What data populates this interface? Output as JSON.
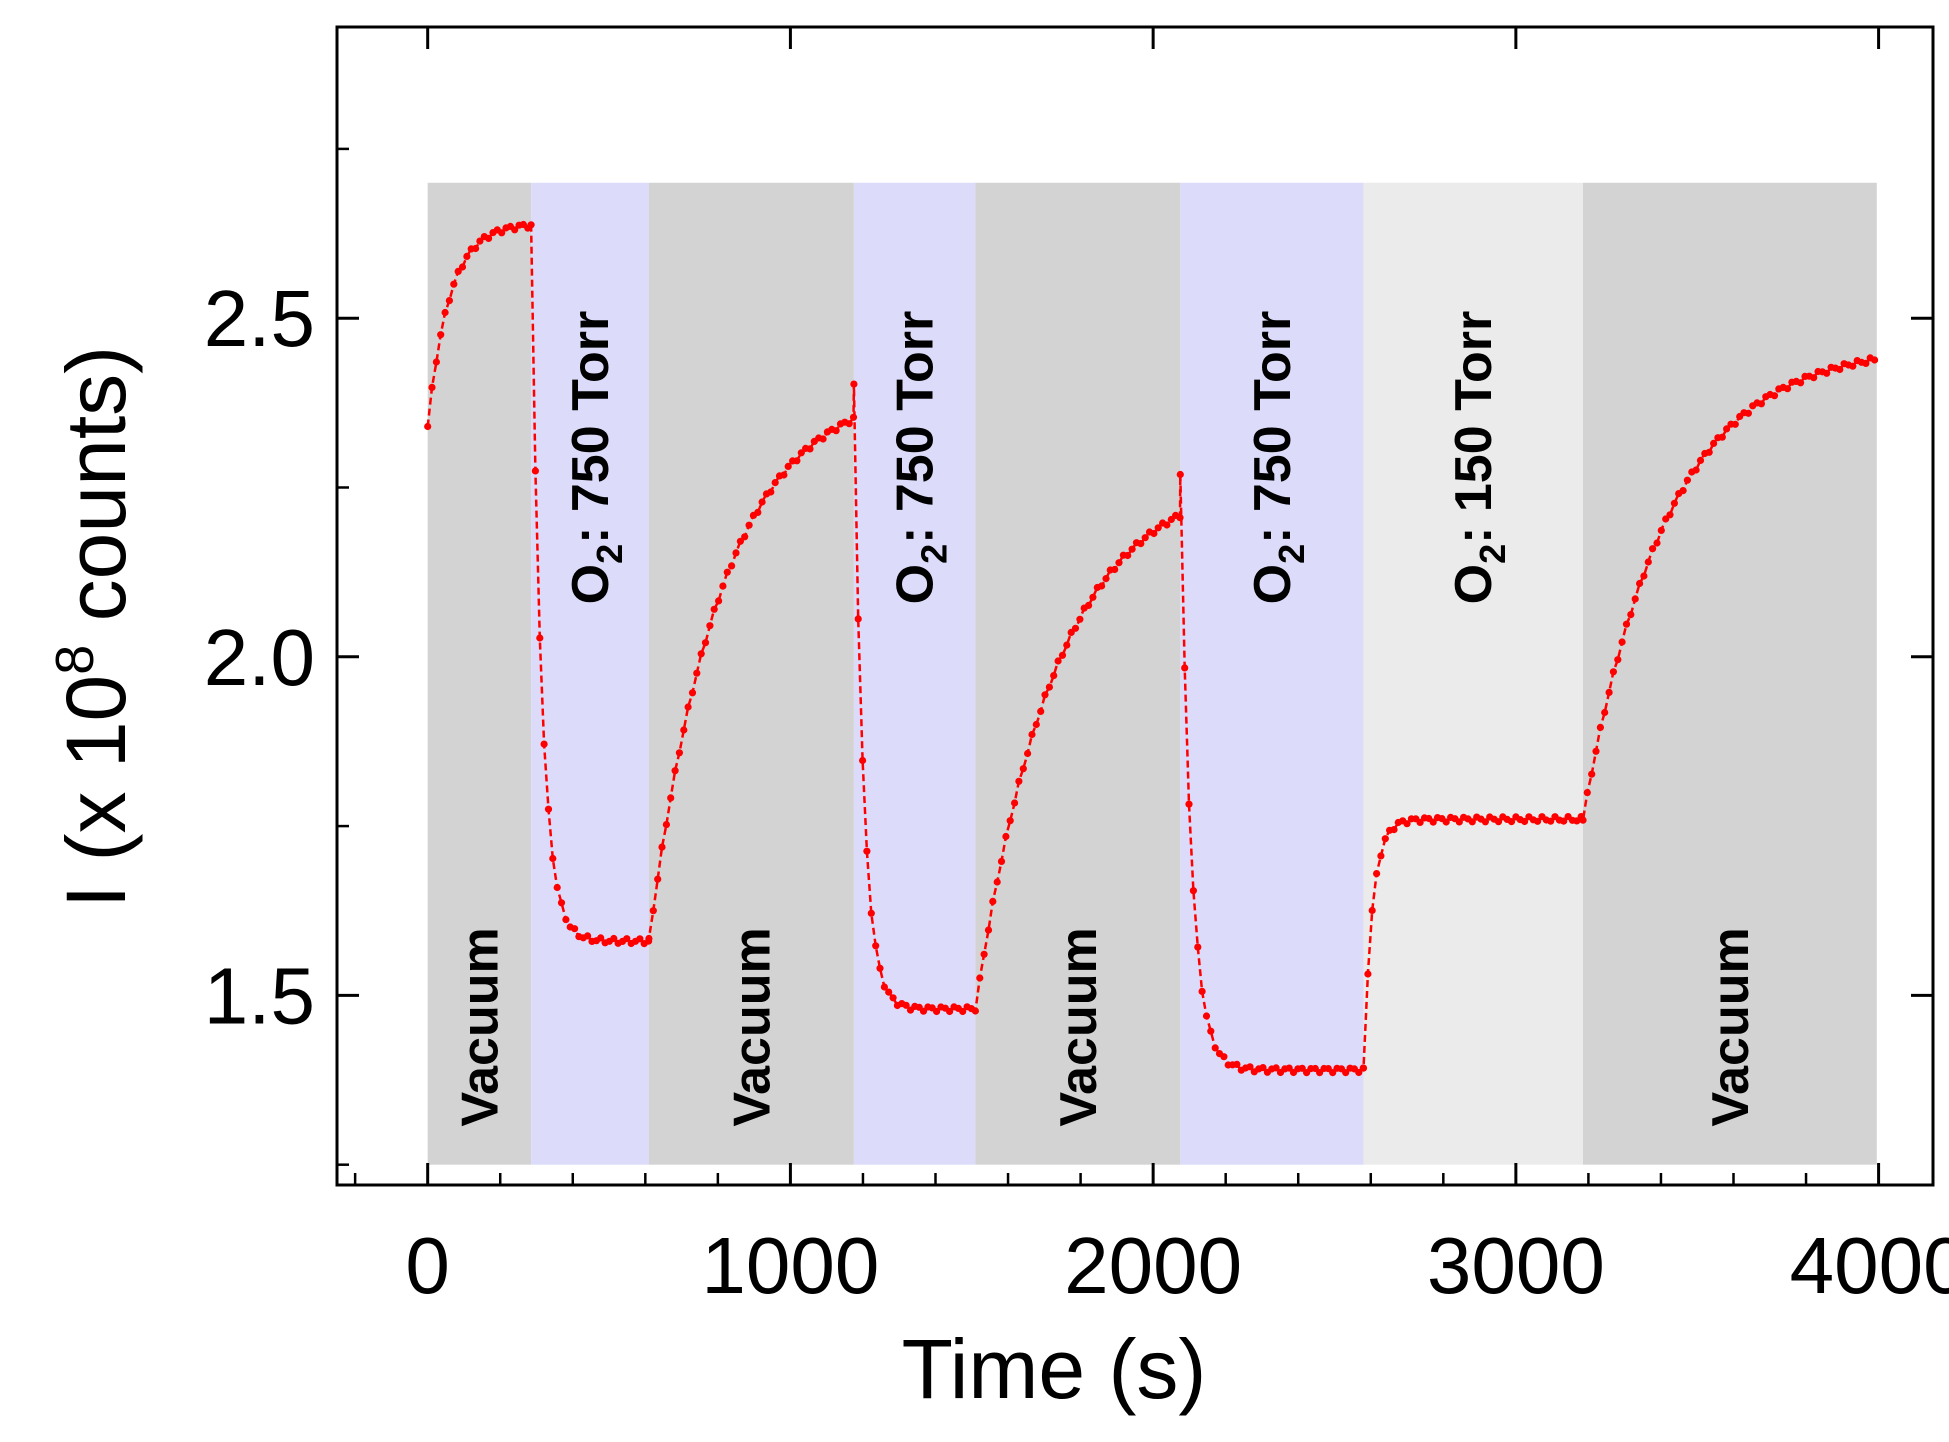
{
  "chart_data": {
    "type": "line",
    "title": "",
    "xlabel": "Time (s)",
    "ylabel": {
      "prefix": "I (x 10",
      "exponent": "8",
      "suffix": " counts)"
    },
    "xlim": [
      -250,
      4150
    ],
    "ylim": [
      1.22,
      2.93
    ],
    "xticks": [
      0,
      1000,
      2000,
      3000,
      4000
    ],
    "xtick_labels": [
      "0",
      "1000",
      "2000",
      "3000",
      "4000"
    ],
    "yticks": [
      1.5,
      2.0,
      2.5
    ],
    "ytick_labels": [
      "1.5",
      "2.0",
      "2.5"
    ],
    "x_minor_step": 200,
    "y_minor_step": 0.25,
    "band_range": [
      1.25,
      2.7
    ],
    "colors": {
      "line": "#ff0000",
      "vacuum": "#d3d3d3",
      "o2_750": "#dcdcfa",
      "o2_150": "#ebebeb",
      "axis": "#000000"
    },
    "bands": [
      {
        "start": 0,
        "end": 285,
        "fill": "vacuum",
        "label": "Vacuum",
        "has_subscript": false
      },
      {
        "start": 285,
        "end": 610,
        "fill": "o2_750",
        "label_main": "O",
        "label_sub": "2",
        "label_rest": ": 750 Torr",
        "has_subscript": true
      },
      {
        "start": 610,
        "end": 1175,
        "fill": "vacuum",
        "label": "Vacuum",
        "has_subscript": false
      },
      {
        "start": 1175,
        "end": 1510,
        "fill": "o2_750",
        "label_main": "O",
        "label_sub": "2",
        "label_rest": ": 750 Torr",
        "has_subscript": true
      },
      {
        "start": 1510,
        "end": 2075,
        "fill": "vacuum",
        "label": "Vacuum",
        "has_subscript": false
      },
      {
        "start": 2075,
        "end": 2580,
        "fill": "o2_750",
        "label_main": "O",
        "label_sub": "2",
        "label_rest": ": 750 Torr",
        "has_subscript": true
      },
      {
        "start": 2580,
        "end": 3185,
        "fill": "o2_150",
        "label_main": "O",
        "label_sub": "2",
        "label_rest": ": 150 Torr",
        "has_subscript": true
      },
      {
        "start": 3185,
        "end": 3995,
        "fill": "vacuum",
        "label": "Vacuum",
        "has_subscript": false
      }
    ],
    "series": [
      {
        "name": "I",
        "segments": [
          {
            "start": 0,
            "end": 285,
            "v0": 2.34,
            "v_end": 2.64,
            "tau": 60
          },
          {
            "start": 285,
            "end": 610,
            "v0": 2.64,
            "v_end": 1.58,
            "tau": 28
          },
          {
            "start": 610,
            "end": 1175,
            "v0": 1.58,
            "v_end": 2.4,
            "tau": 200
          },
          {
            "start": 1175,
            "end": 1510,
            "v0": 2.4,
            "v_end": 1.48,
            "tau": 26
          },
          {
            "start": 1510,
            "end": 2075,
            "v0": 1.48,
            "v_end": 2.27,
            "tau": 220
          },
          {
            "start": 2075,
            "end": 2580,
            "v0": 2.27,
            "v_end": 1.39,
            "tau": 30
          },
          {
            "start": 2580,
            "end": 3185,
            "v0": 1.39,
            "v_end": 1.76,
            "tau": 24
          },
          {
            "start": 3185,
            "end": 3995,
            "v0": 1.76,
            "v_end": 2.46,
            "tau": 230
          }
        ]
      }
    ]
  }
}
